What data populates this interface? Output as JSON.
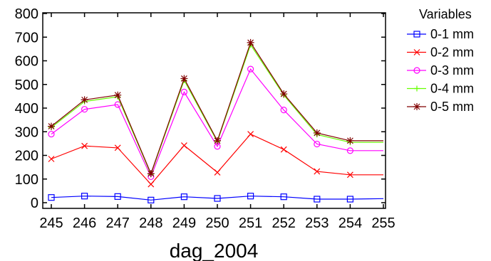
{
  "chart_data": {
    "type": "line",
    "xlabel": "dag_2004",
    "ylabel": "",
    "title": "",
    "x": [
      245,
      246,
      247,
      248,
      249,
      250,
      251,
      252,
      253,
      254,
      255
    ],
    "xlim": [
      245,
      255
    ],
    "ylim": [
      0,
      800
    ],
    "yticks": [
      0,
      100,
      200,
      300,
      400,
      500,
      600,
      700,
      800
    ],
    "grid": false,
    "legend_title": "Variables",
    "legend_position": "right",
    "series": [
      {
        "name": "0-1 mm",
        "color": "#0000ff",
        "marker": "square",
        "values": [
          22,
          28,
          26,
          11,
          25,
          18,
          28,
          25,
          15,
          15,
          17
        ]
      },
      {
        "name": "0-2 mm",
        "color": "#ff0000",
        "marker": "x",
        "values": [
          185,
          240,
          232,
          78,
          242,
          128,
          290,
          225,
          132,
          118,
          118
        ]
      },
      {
        "name": "0-3 mm",
        "color": "#ff00ff",
        "marker": "circle",
        "values": [
          290,
          395,
          415,
          110,
          468,
          238,
          565,
          392,
          248,
          220,
          220
        ]
      },
      {
        "name": "0-4 mm",
        "color": "#66ff00",
        "marker": "plus",
        "values": [
          318,
          428,
          448,
          120,
          518,
          258,
          668,
          455,
          288,
          255,
          255
        ]
      },
      {
        "name": "0-5 mm",
        "color": "#800000",
        "marker": "star",
        "values": [
          323,
          435,
          455,
          123,
          525,
          262,
          677,
          460,
          295,
          262,
          262
        ]
      }
    ]
  }
}
